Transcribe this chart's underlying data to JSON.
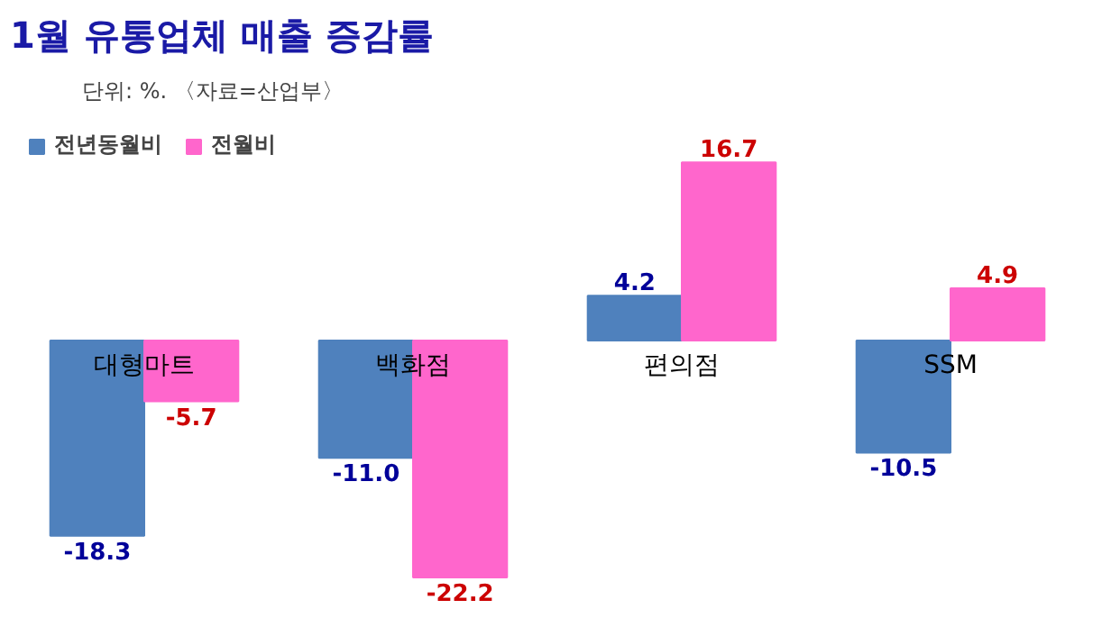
{
  "chart_data": {
    "type": "bar",
    "title": "1월 유통업체 매출 증감률",
    "subtitle": "단위: %. 〈자료=산업부〉",
    "categories": [
      "대형마트",
      "백화점",
      "편의점",
      "SSM"
    ],
    "series": [
      {
        "name": "전년동월비",
        "color": "#4f81bd",
        "values": [
          -18.3,
          -11.0,
          4.2,
          -10.5
        ],
        "value_labels": [
          "-18.3",
          "-11.0",
          "4.2",
          "-10.5"
        ]
      },
      {
        "name": "전월비",
        "color": "#ff66cc",
        "values": [
          -5.7,
          -22.2,
          16.7,
          4.9
        ],
        "value_labels": [
          "-5.7",
          "-22.2",
          "16.7",
          "4.9"
        ]
      }
    ],
    "legend": "top left",
    "grid": false
  }
}
